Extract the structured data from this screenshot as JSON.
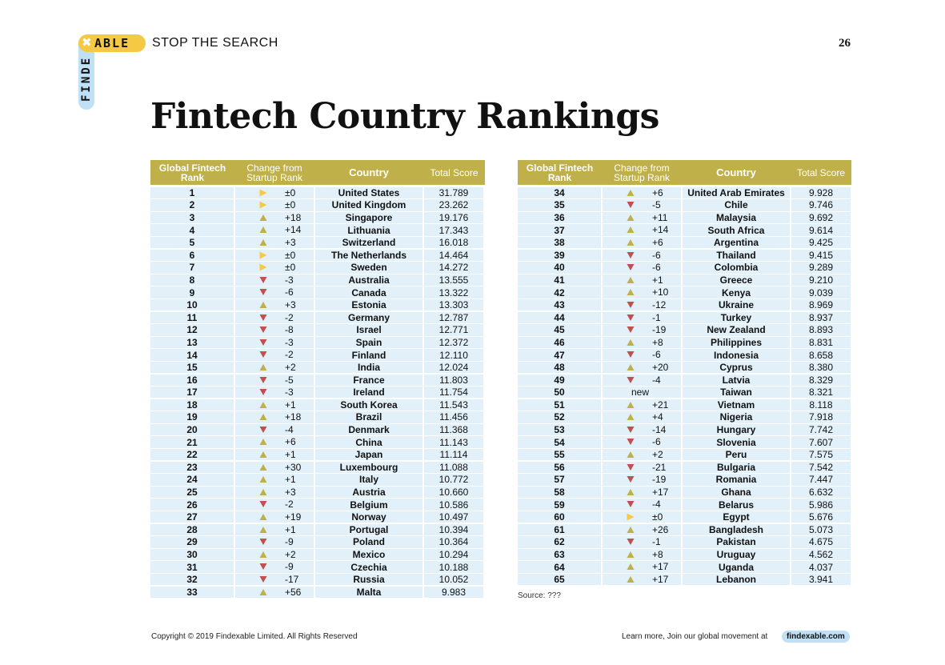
{
  "header": {
    "logo_x": "✖",
    "logo_able": "ABLE",
    "logo_finde": "FINDE",
    "tagline": "STOP THE SEARCH",
    "page_number": "26"
  },
  "title": "Fintech Country Rankings",
  "colors": {
    "header_bg": "#bfb04a",
    "row_bg": "#e2f1f9",
    "up": "#bfb04a",
    "down": "#c0504d",
    "same": "#f6c945",
    "logo_yellow": "#f6c945",
    "logo_blue": "#bfe0f5"
  },
  "table": {
    "headers": {
      "rank": "Global Fintech Rank",
      "change": "Change from Startup Rank",
      "country": "Country",
      "score": "Total Score"
    },
    "left_rows": [
      {
        "rank": "1",
        "dir": "same",
        "change": "±0",
        "country": "United States",
        "score": "31.789"
      },
      {
        "rank": "2",
        "dir": "same",
        "change": "±0",
        "country": "United Kingdom",
        "score": "23.262"
      },
      {
        "rank": "3",
        "dir": "up",
        "change": "+18",
        "country": "Singapore",
        "score": "19.176"
      },
      {
        "rank": "4",
        "dir": "up",
        "change": "+14",
        "country": "Lithuania",
        "score": "17.343"
      },
      {
        "rank": "5",
        "dir": "up",
        "change": "+3",
        "country": "Switzerland",
        "score": "16.018"
      },
      {
        "rank": "6",
        "dir": "same",
        "change": "±0",
        "country": "The Netherlands",
        "score": "14.464"
      },
      {
        "rank": "7",
        "dir": "same",
        "change": "±0",
        "country": "Sweden",
        "score": "14.272"
      },
      {
        "rank": "8",
        "dir": "down",
        "change": "-3",
        "country": "Australia",
        "score": "13.555"
      },
      {
        "rank": "9",
        "dir": "down",
        "change": "-6",
        "country": "Canada",
        "score": "13.322"
      },
      {
        "rank": "10",
        "dir": "up",
        "change": "+3",
        "country": "Estonia",
        "score": "13.303"
      },
      {
        "rank": "11",
        "dir": "down",
        "change": "-2",
        "country": "Germany",
        "score": "12.787"
      },
      {
        "rank": "12",
        "dir": "down",
        "change": "-8",
        "country": "Israel",
        "score": "12.771"
      },
      {
        "rank": "13",
        "dir": "down",
        "change": "-3",
        "country": "Spain",
        "score": "12.372"
      },
      {
        "rank": "14",
        "dir": "down",
        "change": "-2",
        "country": "Finland",
        "score": "12.110"
      },
      {
        "rank": "15",
        "dir": "up",
        "change": "+2",
        "country": "India",
        "score": "12.024"
      },
      {
        "rank": "16",
        "dir": "down",
        "change": "-5",
        "country": "France",
        "score": "11.803"
      },
      {
        "rank": "17",
        "dir": "down",
        "change": "-3",
        "country": "Ireland",
        "score": "11.754"
      },
      {
        "rank": "18",
        "dir": "up",
        "change": "+1",
        "country": "South Korea",
        "score": "11.543"
      },
      {
        "rank": "19",
        "dir": "up",
        "change": "+18",
        "country": "Brazil",
        "score": "11.456"
      },
      {
        "rank": "20",
        "dir": "down",
        "change": "-4",
        "country": "Denmark",
        "score": "11.368"
      },
      {
        "rank": "21",
        "dir": "up",
        "change": "+6",
        "country": "China",
        "score": "11.143"
      },
      {
        "rank": "22",
        "dir": "up",
        "change": "+1",
        "country": "Japan",
        "score": "11.114"
      },
      {
        "rank": "23",
        "dir": "up",
        "change": "+30",
        "country": "Luxembourg",
        "score": "11.088"
      },
      {
        "rank": "24",
        "dir": "up",
        "change": "+1",
        "country": "Italy",
        "score": "10.772"
      },
      {
        "rank": "25",
        "dir": "up",
        "change": "+3",
        "country": "Austria",
        "score": "10.660"
      },
      {
        "rank": "26",
        "dir": "down",
        "change": "-2",
        "country": "Belgium",
        "score": "10.586"
      },
      {
        "rank": "27",
        "dir": "up",
        "change": "+19",
        "country": "Norway",
        "score": "10.497"
      },
      {
        "rank": "28",
        "dir": "up",
        "change": "+1",
        "country": "Portugal",
        "score": "10.394"
      },
      {
        "rank": "29",
        "dir": "down",
        "change": "-9",
        "country": "Poland",
        "score": "10.364"
      },
      {
        "rank": "30",
        "dir": "up",
        "change": "+2",
        "country": "Mexico",
        "score": "10.294"
      },
      {
        "rank": "31",
        "dir": "down",
        "change": "-9",
        "country": "Czechia",
        "score": "10.188"
      },
      {
        "rank": "32",
        "dir": "down",
        "change": "-17",
        "country": "Russia",
        "score": "10.052"
      },
      {
        "rank": "33",
        "dir": "up",
        "change": "+56",
        "country": "Malta",
        "score": "9.983"
      }
    ],
    "right_rows": [
      {
        "rank": "34",
        "dir": "up",
        "change": "+6",
        "country": "United Arab Emirates",
        "score": "9.928"
      },
      {
        "rank": "35",
        "dir": "down",
        "change": "-5",
        "country": "Chile",
        "score": "9.746"
      },
      {
        "rank": "36",
        "dir": "up",
        "change": "+11",
        "country": "Malaysia",
        "score": "9.692"
      },
      {
        "rank": "37",
        "dir": "up",
        "change": "+14",
        "country": "South Africa",
        "score": "9.614"
      },
      {
        "rank": "38",
        "dir": "up",
        "change": "+6",
        "country": "Argentina",
        "score": "9.425"
      },
      {
        "rank": "39",
        "dir": "down",
        "change": "-6",
        "country": "Thailand",
        "score": "9.415"
      },
      {
        "rank": "40",
        "dir": "down",
        "change": "-6",
        "country": "Colombia",
        "score": "9.289"
      },
      {
        "rank": "41",
        "dir": "up",
        "change": "+1",
        "country": "Greece",
        "score": "9.210"
      },
      {
        "rank": "42",
        "dir": "up",
        "change": "+10",
        "country": "Kenya",
        "score": "9.039"
      },
      {
        "rank": "43",
        "dir": "down",
        "change": "-12",
        "country": "Ukraine",
        "score": "8.969"
      },
      {
        "rank": "44",
        "dir": "down",
        "change": "-1",
        "country": "Turkey",
        "score": "8.937"
      },
      {
        "rank": "45",
        "dir": "down",
        "change": "-19",
        "country": "New Zealand",
        "score": "8.893"
      },
      {
        "rank": "46",
        "dir": "up",
        "change": "+8",
        "country": "Philippines",
        "score": "8.831"
      },
      {
        "rank": "47",
        "dir": "down",
        "change": "-6",
        "country": "Indonesia",
        "score": "8.658"
      },
      {
        "rank": "48",
        "dir": "up",
        "change": "+20",
        "country": "Cyprus",
        "score": "8.380"
      },
      {
        "rank": "49",
        "dir": "down",
        "change": "-4",
        "country": "Latvia",
        "score": "8.329"
      },
      {
        "rank": "50",
        "dir": "new",
        "change": "new",
        "country": "Taiwan",
        "score": "8.321"
      },
      {
        "rank": "51",
        "dir": "up",
        "change": "+21",
        "country": "Vietnam",
        "score": "8.118"
      },
      {
        "rank": "52",
        "dir": "up",
        "change": "+4",
        "country": "Nigeria",
        "score": "7.918"
      },
      {
        "rank": "53",
        "dir": "down",
        "change": "-14",
        "country": "Hungary",
        "score": "7.742"
      },
      {
        "rank": "54",
        "dir": "down",
        "change": "-6",
        "country": "Slovenia",
        "score": "7.607"
      },
      {
        "rank": "55",
        "dir": "up",
        "change": "+2",
        "country": "Peru",
        "score": "7.575"
      },
      {
        "rank": "56",
        "dir": "down",
        "change": "-21",
        "country": "Bulgaria",
        "score": "7.542"
      },
      {
        "rank": "57",
        "dir": "down",
        "change": "-19",
        "country": "Romania",
        "score": "7.447"
      },
      {
        "rank": "58",
        "dir": "up",
        "change": "+17",
        "country": "Ghana",
        "score": "6.632"
      },
      {
        "rank": "59",
        "dir": "down",
        "change": "-4",
        "country": "Belarus",
        "score": "5.986"
      },
      {
        "rank": "60",
        "dir": "same",
        "change": "±0",
        "country": "Egypt",
        "score": "5.676"
      },
      {
        "rank": "61",
        "dir": "up",
        "change": "+26",
        "country": "Bangladesh",
        "score": "5.073"
      },
      {
        "rank": "62",
        "dir": "down",
        "change": "-1",
        "country": "Pakistan",
        "score": "4.675"
      },
      {
        "rank": "63",
        "dir": "up",
        "change": "+8",
        "country": "Uruguay",
        "score": "4.562"
      },
      {
        "rank": "64",
        "dir": "up",
        "change": "+17",
        "country": "Uganda",
        "score": "4.037"
      },
      {
        "rank": "65",
        "dir": "up",
        "change": "+17",
        "country": "Lebanon",
        "score": "3.941"
      }
    ]
  },
  "source": "Source: ???",
  "footer": {
    "copyright": "Copyright © 2019 Findexable Limited. All Rights Reserved",
    "learn_more": "Learn more, Join our global movement at",
    "site": "findexable.com"
  }
}
